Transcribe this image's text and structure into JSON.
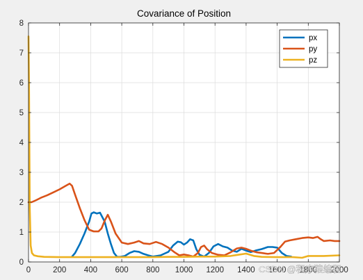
{
  "chart_data": {
    "type": "line",
    "title": "Covariance of Position",
    "xlabel": "",
    "ylabel": "",
    "xlim": [
      0,
      2000
    ],
    "ylim": [
      0,
      8
    ],
    "xticks": [
      0,
      200,
      400,
      600,
      800,
      1000,
      1200,
      1400,
      1600,
      1800,
      2000
    ],
    "yticks": [
      0,
      1,
      2,
      3,
      4,
      5,
      6,
      7,
      8
    ],
    "grid": true,
    "legend_position": "top-right",
    "background": "#ffffff",
    "series": [
      {
        "name": "px",
        "color": "#0072BD",
        "x": [
          280,
          300,
          330,
          360,
          390,
          405,
          420,
          440,
          460,
          490,
          510,
          530,
          550,
          570,
          590,
          620,
          650,
          680,
          710,
          740,
          770,
          800,
          850,
          900,
          930,
          960,
          980,
          1000,
          1020,
          1040,
          1060,
          1080,
          1100,
          1130,
          1160,
          1190,
          1220,
          1250,
          1280,
          1310,
          1340,
          1370,
          1400,
          1430,
          1460,
          1500,
          1540,
          1570,
          1600,
          1630,
          1660,
          1690
        ],
        "values": [
          0.18,
          0.3,
          0.6,
          0.95,
          1.35,
          1.62,
          1.66,
          1.62,
          1.65,
          1.35,
          0.95,
          0.6,
          0.3,
          0.17,
          0.17,
          0.2,
          0.3,
          0.36,
          0.34,
          0.27,
          0.22,
          0.18,
          0.22,
          0.34,
          0.55,
          0.68,
          0.66,
          0.58,
          0.65,
          0.76,
          0.72,
          0.42,
          0.24,
          0.18,
          0.3,
          0.52,
          0.6,
          0.52,
          0.48,
          0.38,
          0.34,
          0.44,
          0.38,
          0.33,
          0.38,
          0.43,
          0.5,
          0.5,
          0.48,
          0.3,
          0.2,
          0.18
        ]
      },
      {
        "name": "py",
        "color": "#D95319",
        "x": [
          0,
          20,
          50,
          80,
          120,
          160,
          200,
          240,
          265,
          280,
          300,
          330,
          360,
          390,
          420,
          450,
          470,
          490,
          510,
          530,
          560,
          600,
          640,
          680,
          710,
          740,
          780,
          820,
          860,
          900,
          940,
          970,
          1000,
          1030,
          1060,
          1090,
          1110,
          1130,
          1150,
          1180,
          1220,
          1260,
          1300,
          1340,
          1370,
          1400,
          1430,
          1470,
          1500,
          1540,
          1580,
          1620,
          1650,
          1680,
          1720,
          1760,
          1800,
          1830,
          1860,
          1880,
          1900,
          1940,
          1970,
          2000
        ],
        "values": [
          2.0,
          2.0,
          2.07,
          2.15,
          2.23,
          2.33,
          2.43,
          2.55,
          2.62,
          2.55,
          2.25,
          1.8,
          1.4,
          1.08,
          1.02,
          1.02,
          1.12,
          1.38,
          1.58,
          1.35,
          0.95,
          0.65,
          0.6,
          0.65,
          0.7,
          0.62,
          0.6,
          0.67,
          0.6,
          0.48,
          0.32,
          0.22,
          0.25,
          0.22,
          0.18,
          0.3,
          0.5,
          0.55,
          0.42,
          0.3,
          0.24,
          0.22,
          0.32,
          0.45,
          0.48,
          0.44,
          0.38,
          0.32,
          0.3,
          0.27,
          0.3,
          0.5,
          0.68,
          0.72,
          0.76,
          0.8,
          0.82,
          0.8,
          0.84,
          0.76,
          0.7,
          0.72,
          0.7,
          0.7
        ]
      },
      {
        "name": "pz",
        "color": "#EDB120",
        "x": [
          0,
          3,
          8,
          14,
          22,
          35,
          60,
          100,
          200,
          400,
          600,
          800,
          900,
          1000,
          1100,
          1200,
          1300,
          1350,
          1400,
          1450,
          1500,
          1600,
          1700,
          1760,
          1800,
          1900,
          2000
        ],
        "values": [
          7.55,
          6.0,
          1.8,
          0.55,
          0.3,
          0.22,
          0.19,
          0.17,
          0.16,
          0.16,
          0.16,
          0.16,
          0.17,
          0.17,
          0.18,
          0.18,
          0.2,
          0.24,
          0.28,
          0.2,
          0.17,
          0.16,
          0.16,
          0.14,
          0.2,
          0.2,
          0.22
        ]
      }
    ]
  },
  "watermark": "CSDN @程序猿编程"
}
